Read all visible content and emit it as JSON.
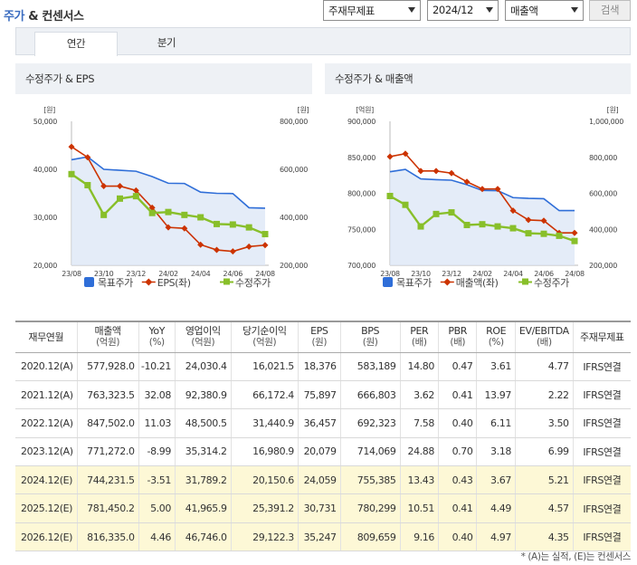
{
  "header": {
    "title_part1": "주가",
    "title_part2": "& 컨센서스",
    "select_metric": "주재무제표",
    "select_period": "2024/12",
    "select_item": "매출액",
    "search_label": "검색"
  },
  "tabs": [
    {
      "label": "연간"
    },
    {
      "label": "분기"
    }
  ],
  "colors": {
    "target_price": "#2f6ed8",
    "eps": "#cc3300",
    "adj_price": "#88bf2a",
    "area": "#dbe6f5"
  },
  "chart_data": [
    {
      "type": "line",
      "title": "수정주가 & EPS",
      "left_unit": "[원]",
      "right_unit": "[원]",
      "left_ylim": [
        20000,
        50000
      ],
      "left_ticks": [
        "50,000",
        "40,000",
        "30,000",
        "20,000"
      ],
      "right_ylim": [
        200000,
        800000
      ],
      "right_ticks": [
        "800,000",
        "600,000",
        "400,000",
        "200,000"
      ],
      "x_ticks": [
        "23/08",
        "23/10",
        "23/12",
        "24/02",
        "24/04",
        "24/06",
        "24/08"
      ],
      "legend": [
        "목표주가",
        "EPS(좌)",
        "수정주가"
      ],
      "series": [
        {
          "name": "목표주가",
          "axis": "right",
          "values": [
            640000,
            652000,
            600000,
            596000,
            592000,
            570000,
            542000,
            541000,
            505000,
            500000,
            499000,
            440000,
            438000
          ]
        },
        {
          "name": "EPS(좌)",
          "axis": "left",
          "values": [
            44700,
            42500,
            36500,
            36500,
            35600,
            32000,
            27900,
            27700,
            24300,
            23200,
            22900,
            23900,
            24200
          ]
        },
        {
          "name": "수정주가",
          "axis": "right",
          "values": [
            580000,
            534000,
            410000,
            478000,
            488000,
            418000,
            422000,
            410000,
            400000,
            372000,
            370000,
            358000,
            330000
          ]
        }
      ]
    },
    {
      "type": "line",
      "title": "수정주가 & 매출액",
      "left_unit": "[억원]",
      "right_unit": "[원]",
      "left_ylim": [
        700000,
        900000
      ],
      "left_ticks": [
        "900,000",
        "850,000",
        "800,000",
        "750,000",
        "700,000"
      ],
      "right_ylim": [
        200000,
        1000000
      ],
      "right_ticks": [
        "1,000,000",
        "800,000",
        "600,000",
        "400,000",
        "200,000"
      ],
      "x_ticks": [
        "23/08",
        "23/10",
        "23/12",
        "24/02",
        "24/04",
        "24/06",
        "24/08"
      ],
      "legend": [
        "목표주가",
        "매출액(좌)",
        "수정주가"
      ],
      "series": [
        {
          "name": "목표주가",
          "axis": "right",
          "values": [
            720000,
            733000,
            680000,
            676000,
            673000,
            648000,
            616000,
            615000,
            576000,
            572000,
            570000,
            504000,
            504000
          ]
        },
        {
          "name": "매출액(좌)",
          "axis": "left",
          "values": [
            851000,
            855000,
            831000,
            831000,
            828000,
            816000,
            806000,
            806000,
            776000,
            763000,
            762000,
            745000,
            745000
          ]
        },
        {
          "name": "수정주가",
          "axis": "right",
          "values": [
            585000,
            536000,
            416000,
            485000,
            494000,
            424000,
            428000,
            416000,
            406000,
            378000,
            375000,
            364000,
            335000
          ]
        }
      ]
    }
  ],
  "table": {
    "headers": [
      {
        "main": "재무연월",
        "sub": ""
      },
      {
        "main": "매출액",
        "sub": "(억원)"
      },
      {
        "main": "YoY",
        "sub": "(%)"
      },
      {
        "main": "영업이익",
        "sub": "(억원)"
      },
      {
        "main": "당기순이익",
        "sub": "(억원)"
      },
      {
        "main": "EPS",
        "sub": "(원)"
      },
      {
        "main": "BPS",
        "sub": "(원)"
      },
      {
        "main": "PER",
        "sub": "(배)"
      },
      {
        "main": "PBR",
        "sub": "(배)"
      },
      {
        "main": "ROE",
        "sub": "(%)"
      },
      {
        "main": "EV/EBITDA",
        "sub": "(배)"
      },
      {
        "main": "주재무제표",
        "sub": ""
      }
    ],
    "rows": [
      [
        "2020.12(A)",
        "577,928.0",
        "-10.21",
        "24,030.4",
        "16,021.5",
        "18,376",
        "583,189",
        "14.80",
        "0.47",
        "3.61",
        "4.77",
        "IFRS연결"
      ],
      [
        "2021.12(A)",
        "763,323.5",
        "32.08",
        "92,380.9",
        "66,172.4",
        "75,897",
        "666,803",
        "3.62",
        "0.41",
        "13.97",
        "2.22",
        "IFRS연결"
      ],
      [
        "2022.12(A)",
        "847,502.0",
        "11.03",
        "48,500.5",
        "31,440.9",
        "36,457",
        "692,323",
        "7.58",
        "0.40",
        "6.11",
        "3.50",
        "IFRS연결"
      ],
      [
        "2023.12(A)",
        "771,272.0",
        "-8.99",
        "35,314.2",
        "16,980.9",
        "20,079",
        "714,069",
        "24.88",
        "0.70",
        "3.18",
        "6.99",
        "IFRS연결"
      ],
      [
        "2024.12(E)",
        "744,231.5",
        "-3.51",
        "31,789.2",
        "20,150.6",
        "24,059",
        "755,385",
        "13.43",
        "0.43",
        "3.67",
        "5.21",
        "IFRS연결"
      ],
      [
        "2025.12(E)",
        "781,450.2",
        "5.00",
        "41,965.9",
        "25,391.2",
        "30,731",
        "780,299",
        "10.51",
        "0.41",
        "4.49",
        "4.57",
        "IFRS연결"
      ],
      [
        "2026.12(E)",
        "816,335.0",
        "4.46",
        "46,746.0",
        "29,122.3",
        "35,247",
        "809,659",
        "9.16",
        "0.40",
        "4.97",
        "4.35",
        "IFRS연결"
      ]
    ]
  },
  "note": "* (A)는 실적, (E)는 컨센서스"
}
